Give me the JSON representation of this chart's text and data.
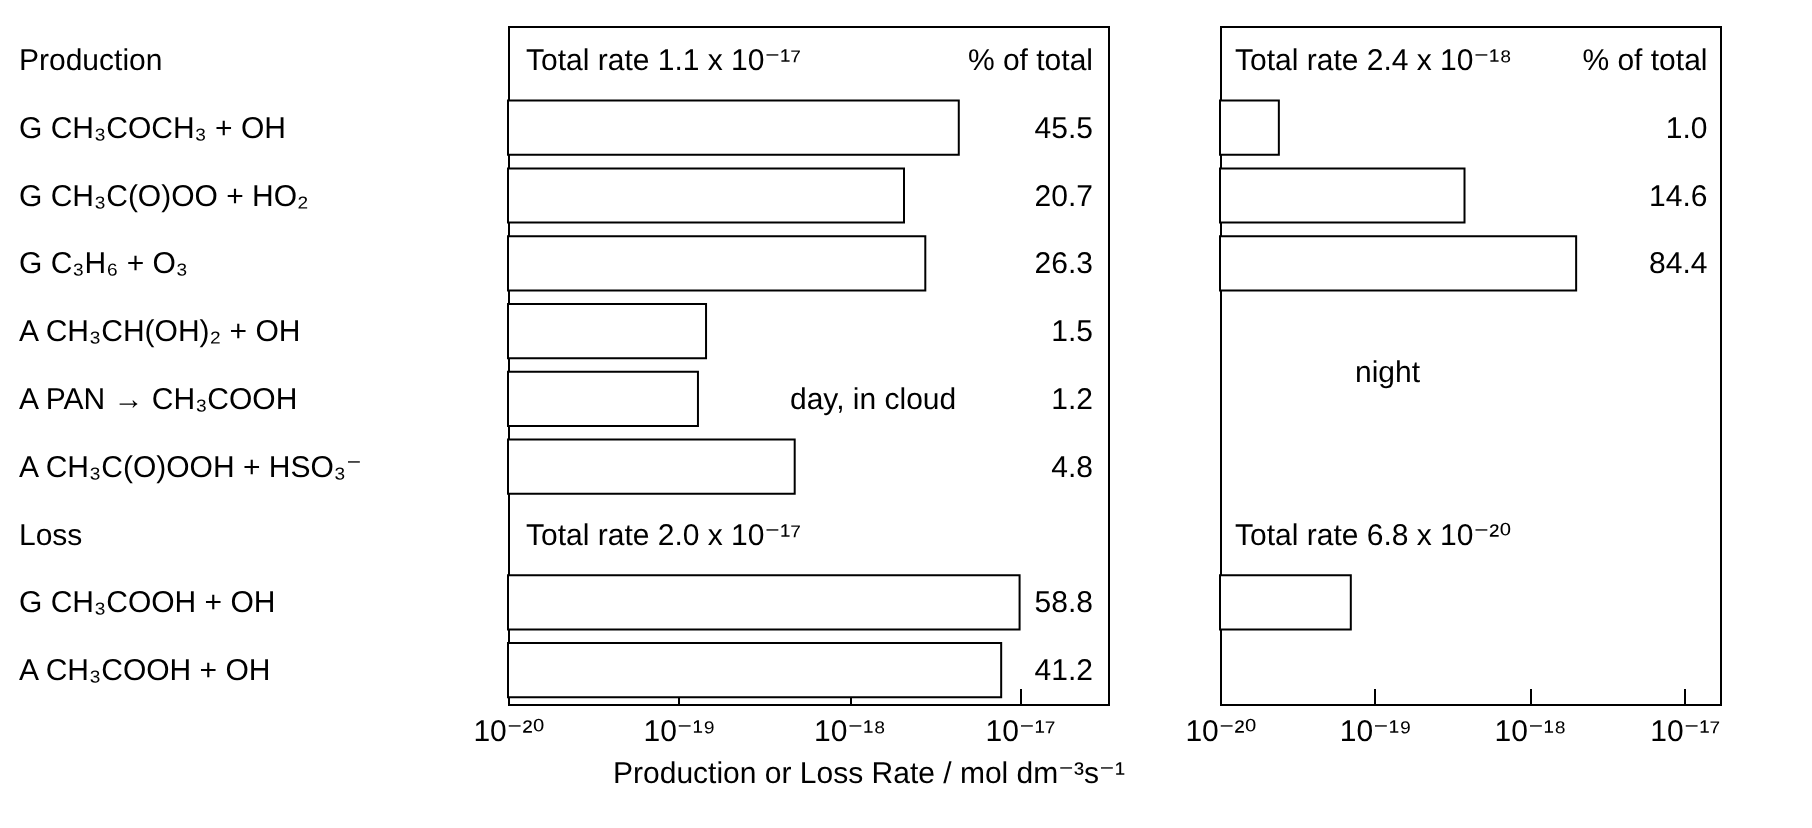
{
  "chart_data": [
    {
      "type": "bar",
      "orientation": "horizontal",
      "xlabel": "Production or Loss Rate / mol dm⁻³s⁻¹",
      "categories": [
        "Production",
        "G CH₃COCH₃ + OH",
        "G CH₃C(O)OO + HO₂",
        "G C₃H₆ + O₃",
        "A CH₃CH(OH)₂ + OH",
        "A PAN → CH₃COOH",
        "A CH₃C(O)OOH + HSO₃⁻",
        "Loss",
        "G CH₃COOH + OH",
        "A CH₃COOH + OH"
      ],
      "values": [
        null,
        4.4e-18,
        2.1e-18,
        2.8e-18,
        1.45e-19,
        1.3e-19,
        4.8e-19,
        null,
        1e-17,
        7.8e-18
      ],
      "color": "#ffffff",
      "log": "x",
      "xlim": [
        1e-20,
        3.3e-17
      ],
      "xticks": [
        {
          "value": 1e-20,
          "label": "10⁻²⁰"
        },
        {
          "value": 1e-19,
          "label": "10⁻¹⁹"
        },
        {
          "value": 1e-18,
          "label": "10⁻¹⁸"
        },
        {
          "value": 1e-17,
          "label": "10⁻¹⁷"
        }
      ],
      "annotations": [
        "Total rate 1.1 x 10⁻¹⁷",
        "% of total",
        "45.5",
        "20.7",
        "26.3",
        "1.5",
        "1.2",
        "4.8",
        "day, in cloud",
        "Total rate 2.0 x 10⁻¹⁷",
        "58.8",
        "41.2"
      ]
    },
    {
      "type": "bar",
      "orientation": "horizontal",
      "tick_labels": "x",
      "values": [
        null,
        2.4e-20,
        3.8e-19,
        2e-18,
        null,
        null,
        null,
        null,
        7e-20,
        null
      ],
      "color": "#ffffff",
      "log": "x",
      "xlim": [
        1e-20,
        1.7e-17
      ],
      "xticks": [
        {
          "value": 1e-20,
          "label": "10⁻²⁰"
        },
        {
          "value": 1e-19,
          "label": "10⁻¹⁹"
        },
        {
          "value": 1e-18,
          "label": "10⁻¹⁸"
        },
        {
          "value": 1e-17,
          "label": "10⁻¹⁷"
        }
      ],
      "annotations": [
        "Total rate 2.4 x 10⁻¹⁸",
        "% of total",
        "1.0",
        "14.6",
        "84.4",
        "night",
        "Total rate 6.8 x 10⁻²⁰"
      ]
    }
  ]
}
